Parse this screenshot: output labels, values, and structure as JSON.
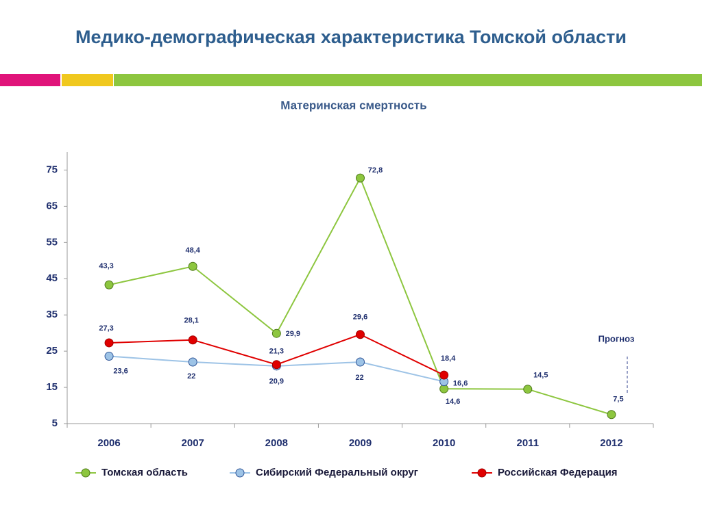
{
  "chart_data": {
    "type": "line",
    "title": "Медико-демографическая характеристика Томской области",
    "subtitle": "Материнская смертность",
    "annotation": "Прогноз",
    "categories": [
      "2006",
      "2007",
      "2008",
      "2009",
      "2010",
      "2011",
      "2012"
    ],
    "series": [
      {
        "name": "Томская область",
        "color": "#8dc63f",
        "marker_stroke": "#4f7a1c",
        "forecast_from_index": 5,
        "values": [
          43.3,
          48.4,
          29.9,
          72.8,
          14.6,
          14.5,
          7.5
        ],
        "value_labels": [
          "43,3",
          "48,4",
          "29,9",
          "72,8",
          "14,6",
          "14,5",
          "7,5"
        ]
      },
      {
        "name": "Сибирский Федеральный округ",
        "color": "#9dc3e6",
        "marker_stroke": "#2f5597",
        "values": [
          23.6,
          22,
          20.9,
          22,
          16.6,
          null,
          null
        ],
        "value_labels": [
          "23,6",
          "22",
          "20,9",
          "22",
          "16,6",
          null,
          null
        ]
      },
      {
        "name": "Российская Федерация",
        "color": "#e00000",
        "marker_stroke": "#a00000",
        "values": [
          27.3,
          28.1,
          21.3,
          29.6,
          18.4,
          null,
          null
        ],
        "value_labels": [
          "27,3",
          "28,1",
          "21,3",
          "29,6",
          "18,4",
          null,
          null
        ]
      }
    ],
    "ylim": [
      5,
      80
    ],
    "yticks": [
      5,
      15,
      25,
      35,
      45,
      55,
      65,
      75
    ],
    "grid": false,
    "legend": "bottom"
  }
}
